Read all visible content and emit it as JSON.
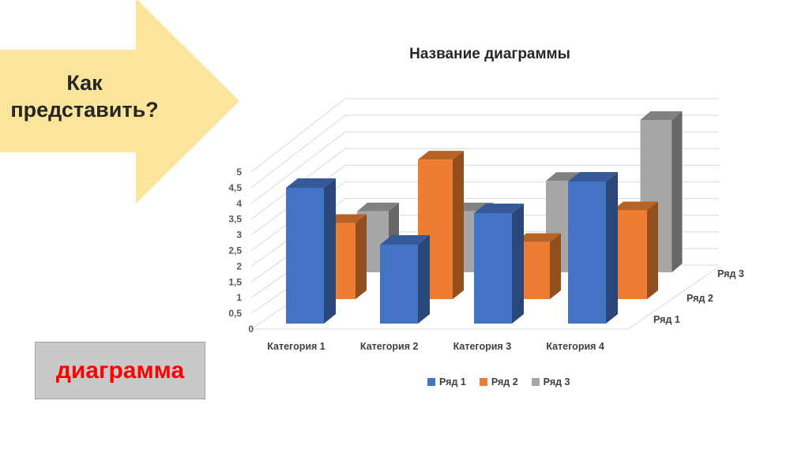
{
  "slide": {
    "background": "#ffffff",
    "arrow": {
      "label": "Как представить?",
      "fill": "#FBE59B",
      "text_color": "#262626"
    },
    "diagram_box": {
      "label": "диаграмма",
      "fill": "#C9C9C9",
      "border": "#A3A3A3",
      "text_color": "#FF0000"
    }
  },
  "chart_data": {
    "type": "bar",
    "variant": "3d-clustered-column",
    "title": "Название диаграммы",
    "title_color": "#262626",
    "categories": [
      "Категория 1",
      "Категория 2",
      "Категория 3",
      "Категория 4"
    ],
    "series": [
      {
        "name": "Ряд 1",
        "color": "#4472C4",
        "values": [
          4.3,
          2.5,
          3.5,
          4.5
        ]
      },
      {
        "name": "Ряд 2",
        "color": "#ED7D31",
        "values": [
          2.4,
          4.4,
          1.8,
          2.8
        ]
      },
      {
        "name": "Ряд 3",
        "color": "#A6A6A6",
        "values": [
          2,
          2,
          3,
          5
        ]
      }
    ],
    "value_axis": {
      "min": 0,
      "max": 5,
      "step": 0.5,
      "tick_labels": [
        "0",
        "0,5",
        "1",
        "1,5",
        "2",
        "2,5",
        "3",
        "3,5",
        "4",
        "4,5",
        "5"
      ],
      "label_color": "#595959"
    },
    "depth_axis_labels": [
      "Ряд 1",
      "Ряд 2",
      "Ряд 3"
    ],
    "category_label_color": "#3f3f3f",
    "legend": {
      "position": "bottom",
      "entries": [
        "Ряд 1",
        "Ряд 2",
        "Ряд 3"
      ]
    },
    "grid": {
      "show": true,
      "color": "#D9D9D9"
    }
  }
}
